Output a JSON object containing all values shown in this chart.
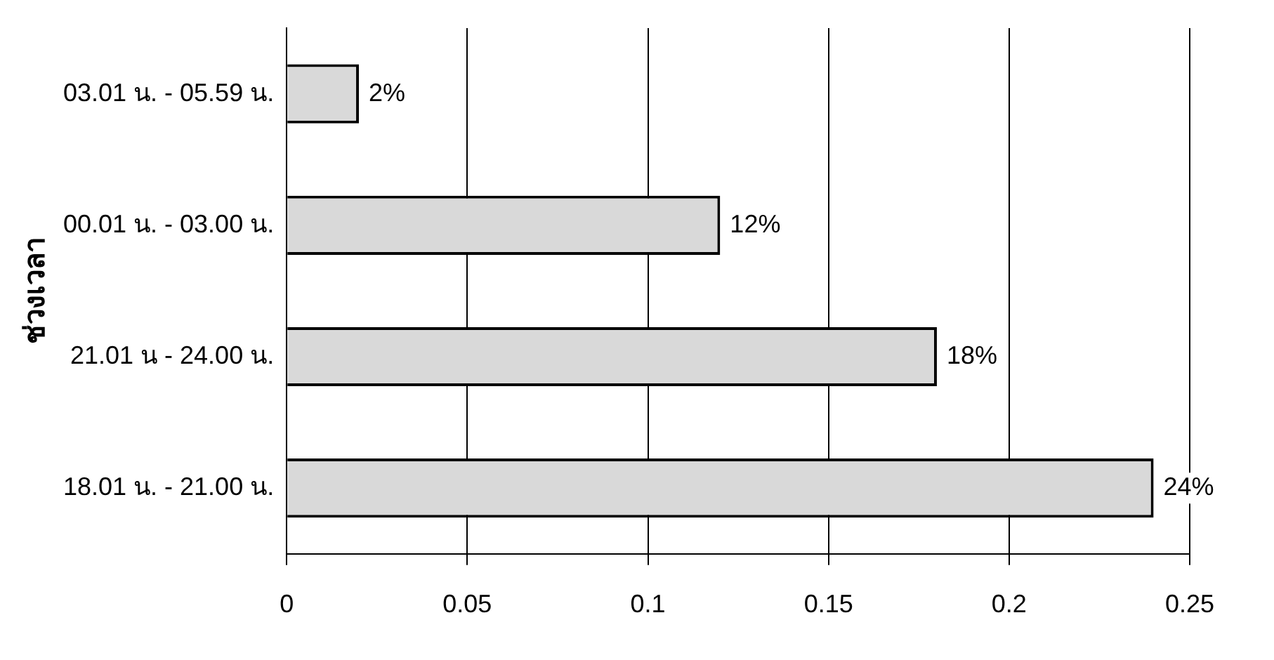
{
  "chart_data": {
    "type": "bar",
    "orientation": "horizontal",
    "ylabel": "ช่วงเวลา",
    "categories": [
      "03.01 น. - 05.59 น.",
      "00.01 น. - 03.00 น.",
      "21.01 น - 24.00 น.",
      "18.01 น. - 21.00 น."
    ],
    "values": [
      0.02,
      0.12,
      0.18,
      0.24
    ],
    "value_labels": [
      "2%",
      "12%",
      "18%",
      "24%"
    ],
    "color": "#d9d9d9",
    "xlim": [
      0,
      0.25
    ],
    "xticks": [
      0,
      0.05,
      0.1,
      0.15,
      0.2,
      0.25
    ],
    "grid": "x",
    "legend": false
  }
}
